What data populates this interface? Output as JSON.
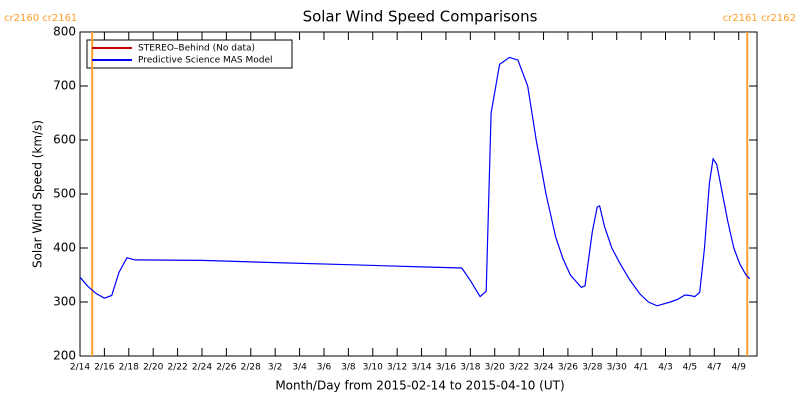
{
  "chart_data": {
    "type": "line",
    "title": "Solar Wind Speed Comparisons",
    "x_label": "Month/Day from 2015-02-14 to 2015-04-10 (UT)",
    "y_label": "Solar Wind Speed (km/s)",
    "xlim": [
      0,
      55.5
    ],
    "ylim": [
      200,
      800
    ],
    "yticks": [
      200,
      300,
      400,
      500,
      600,
      700,
      800
    ],
    "xticks": [
      {
        "value": 0,
        "label": "2/14"
      },
      {
        "value": 2,
        "label": "2/16"
      },
      {
        "value": 4,
        "label": "2/18"
      },
      {
        "value": 6,
        "label": "2/20"
      },
      {
        "value": 8,
        "label": "2/22"
      },
      {
        "value": 10,
        "label": "2/24"
      },
      {
        "value": 12,
        "label": "2/26"
      },
      {
        "value": 14,
        "label": "2/28"
      },
      {
        "value": 16,
        "label": "3/2"
      },
      {
        "value": 18,
        "label": "3/4"
      },
      {
        "value": 20,
        "label": "3/6"
      },
      {
        "value": 22,
        "label": "3/8"
      },
      {
        "value": 24,
        "label": "3/10"
      },
      {
        "value": 26,
        "label": "3/12"
      },
      {
        "value": 28,
        "label": "3/14"
      },
      {
        "value": 30,
        "label": "3/16"
      },
      {
        "value": 32,
        "label": "3/18"
      },
      {
        "value": 34,
        "label": "3/20"
      },
      {
        "value": 36,
        "label": "3/22"
      },
      {
        "value": 38,
        "label": "3/24"
      },
      {
        "value": 40,
        "label": "3/26"
      },
      {
        "value": 42,
        "label": "3/28"
      },
      {
        "value": 44,
        "label": "3/30"
      },
      {
        "value": 46,
        "label": "4/1"
      },
      {
        "value": 48,
        "label": "4/3"
      },
      {
        "value": 50,
        "label": "4/5"
      },
      {
        "value": 52,
        "label": "4/7"
      },
      {
        "value": 54,
        "label": "4/9"
      }
    ],
    "x": [
      0,
      0.6,
      1.3,
      2.0,
      2.6,
      3.2,
      3.85,
      4.5,
      10,
      16,
      22,
      28,
      31.3,
      32.0,
      32.8,
      33.3,
      33.7,
      34.4,
      35.2,
      35.9,
      36.7,
      37.4,
      38.2,
      39.0,
      39.6,
      40.2,
      41.1,
      41.4,
      42.0,
      42.4,
      42.6,
      43.0,
      43.6,
      44.3,
      45.1,
      45.9,
      46.6,
      47.3,
      48.4,
      49.0,
      49.6,
      50.0,
      50.4,
      50.8,
      51.2,
      51.6,
      51.9,
      52.2,
      52.5,
      53.1,
      53.6,
      54.1,
      54.6,
      54.9
    ],
    "series": [
      {
        "name": "STEREO–Behind (No data)",
        "color": "#cc0000",
        "values": [
          null,
          null,
          null,
          null,
          null,
          null,
          null,
          null,
          null,
          null,
          null,
          null,
          null,
          null,
          null,
          null,
          null,
          null,
          null,
          null,
          null,
          null,
          null,
          null,
          null,
          null,
          null,
          null,
          null,
          null,
          null,
          null,
          null,
          null,
          null,
          null,
          null,
          null,
          null,
          null,
          null,
          null,
          null,
          null,
          null,
          null,
          null,
          null,
          null,
          null,
          null,
          null,
          null,
          null
        ]
      },
      {
        "name": "Predictive Science MAS Model",
        "color": "#0000ff",
        "values": [
          346,
          330,
          316,
          307,
          312,
          355,
          382,
          378,
          377,
          373,
          369,
          365,
          363,
          340,
          310,
          320,
          650,
          740,
          753,
          748,
          700,
          600,
          500,
          420,
          380,
          350,
          327,
          330,
          430,
          476,
          478,
          440,
          400,
          370,
          340,
          315,
          300,
          293,
          300,
          305,
          313,
          312,
          310,
          318,
          400,
          520,
          565,
          555,
          520,
          450,
          400,
          370,
          350,
          343
        ]
      }
    ],
    "annotations": [
      {
        "x": 1.0,
        "label": "cr2160 cr2161"
      },
      {
        "x": 54.7,
        "label": "cr2161 cr2162"
      }
    ],
    "annotation_color": "#ff9e2a"
  }
}
